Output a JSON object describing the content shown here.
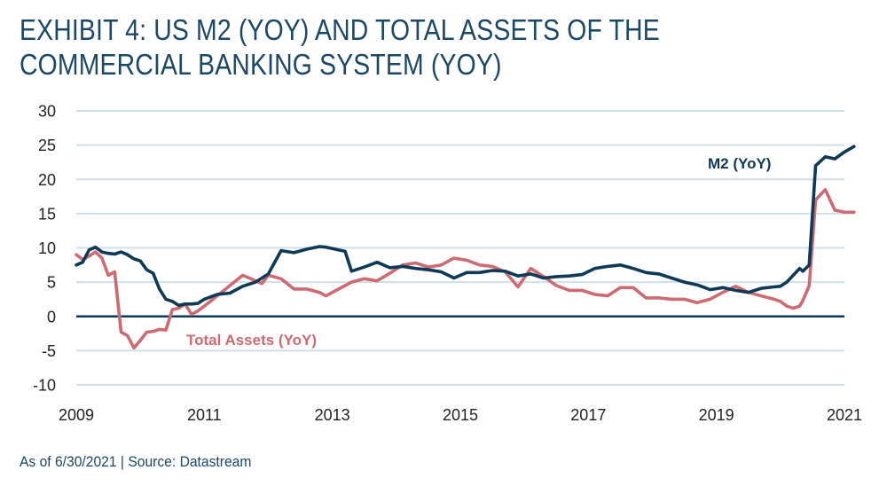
{
  "title_lines": [
    "EXHIBIT 4: US M2 (YOY) AND TOTAL ASSETS OF THE",
    "COMMERCIAL BANKING SYSTEM (YOY)"
  ],
  "footer": "As of 6/30/2021 | Source: Datastream",
  "colors": {
    "title": "#1b4867",
    "m2": "#0f3a57",
    "total_assets": "#cc6b72",
    "grid": "#cfe0ea",
    "zero_line": "#0f3a57"
  },
  "chart_data": {
    "type": "line",
    "title": "EXHIBIT 4: US M2 (YOY) AND TOTAL ASSETS OF THE COMMERCIAL BANKING SYSTEM (YOY)",
    "xlabel": "",
    "ylabel": "",
    "xlim": [
      2009,
      2021.15
    ],
    "ylim": [
      -10,
      30
    ],
    "yticks": [
      30,
      25,
      20,
      15,
      10,
      5,
      0,
      -5,
      -10
    ],
    "ytick_labels": [
      "30",
      "25",
      "20",
      "15",
      "10",
      "5",
      "0",
      "-5",
      "-10"
    ],
    "xticks": [
      2009,
      2011,
      2013,
      2015,
      2017,
      2019,
      2021
    ],
    "xtick_labels": [
      "2009",
      "2011",
      "2013",
      "2015",
      "2017",
      "2019",
      "2021"
    ],
    "grid": true,
    "series": [
      {
        "name": "M2 (YoY)",
        "label": "M2 (YoY)",
        "x": [
          2009.0,
          2009.1,
          2009.2,
          2009.3,
          2009.4,
          2009.5,
          2009.6,
          2009.7,
          2009.8,
          2009.9,
          2010.0,
          2010.1,
          2010.2,
          2010.3,
          2010.4,
          2010.5,
          2010.6,
          2010.7,
          2010.8,
          2010.9,
          2011.0,
          2011.2,
          2011.4,
          2011.6,
          2011.8,
          2011.9,
          2012.0,
          2012.2,
          2012.4,
          2012.6,
          2012.8,
          2012.9,
          2013.0,
          2013.2,
          2013.3,
          2013.5,
          2013.7,
          2013.9,
          2014.1,
          2014.3,
          2014.5,
          2014.7,
          2014.9,
          2015.1,
          2015.3,
          2015.5,
          2015.7,
          2015.9,
          2016.1,
          2016.3,
          2016.5,
          2016.7,
          2016.9,
          2017.1,
          2017.3,
          2017.5,
          2017.7,
          2017.9,
          2018.1,
          2018.3,
          2018.5,
          2018.7,
          2018.9,
          2019.1,
          2019.3,
          2019.5,
          2019.7,
          2019.9,
          2020.0,
          2020.1,
          2020.2,
          2020.3,
          2020.35,
          2020.45,
          2020.55,
          2020.7,
          2020.85,
          2021.0,
          2021.15
        ],
        "values": [
          7.5,
          7.9,
          9.7,
          10.1,
          9.4,
          9.2,
          9.1,
          9.4,
          9.0,
          8.4,
          8.1,
          6.8,
          6.3,
          4.0,
          2.5,
          2.2,
          1.6,
          1.8,
          1.8,
          1.9,
          2.5,
          3.2,
          3.4,
          4.4,
          5.0,
          5.6,
          6.2,
          9.6,
          9.3,
          9.8,
          10.2,
          10.1,
          9.9,
          9.5,
          6.6,
          7.2,
          7.9,
          7.1,
          7.3,
          7.0,
          6.8,
          6.5,
          5.6,
          6.4,
          6.4,
          6.7,
          6.6,
          5.9,
          6.2,
          5.6,
          5.8,
          5.9,
          6.1,
          7.0,
          7.3,
          7.5,
          7.0,
          6.4,
          6.2,
          5.6,
          5.0,
          4.6,
          3.9,
          4.2,
          3.8,
          3.5,
          4.1,
          4.3,
          4.4,
          5.0,
          6.0,
          7.0,
          6.6,
          7.5,
          22.0,
          23.3,
          23.0,
          24.0,
          24.8
        ]
      },
      {
        "name": "Total Assets (YoY)",
        "label": "Total Assets (YoY)",
        "x": [
          2009.0,
          2009.1,
          2009.2,
          2009.3,
          2009.4,
          2009.5,
          2009.6,
          2009.7,
          2009.8,
          2009.9,
          2010.0,
          2010.1,
          2010.2,
          2010.3,
          2010.4,
          2010.5,
          2010.6,
          2010.7,
          2010.8,
          2010.9,
          2011.0,
          2011.2,
          2011.4,
          2011.6,
          2011.8,
          2011.9,
          2012.0,
          2012.2,
          2012.4,
          2012.6,
          2012.8,
          2012.9,
          2013.0,
          2013.2,
          2013.3,
          2013.5,
          2013.7,
          2013.9,
          2014.1,
          2014.3,
          2014.5,
          2014.7,
          2014.9,
          2015.1,
          2015.3,
          2015.5,
          2015.7,
          2015.9,
          2016.1,
          2016.3,
          2016.5,
          2016.7,
          2016.9,
          2017.1,
          2017.3,
          2017.5,
          2017.7,
          2017.9,
          2018.1,
          2018.3,
          2018.5,
          2018.7,
          2018.9,
          2019.1,
          2019.3,
          2019.5,
          2019.7,
          2019.9,
          2020.0,
          2020.1,
          2020.2,
          2020.3,
          2020.35,
          2020.45,
          2020.55,
          2020.7,
          2020.85,
          2021.0,
          2021.15
        ],
        "values": [
          9.0,
          8.3,
          8.8,
          9.4,
          8.5,
          6.0,
          6.5,
          -2.3,
          -2.8,
          -4.6,
          -3.5,
          -2.3,
          -2.2,
          -1.9,
          -2.0,
          1.0,
          1.2,
          1.8,
          0.3,
          0.8,
          1.5,
          3.0,
          4.5,
          6.0,
          5.2,
          4.8,
          6.0,
          5.5,
          4.0,
          4.0,
          3.5,
          3.0,
          3.5,
          4.5,
          5.0,
          5.5,
          5.2,
          6.3,
          7.5,
          7.8,
          7.2,
          7.5,
          8.5,
          8.2,
          7.5,
          7.3,
          6.5,
          4.3,
          7.0,
          5.8,
          4.5,
          3.8,
          3.8,
          3.2,
          3.0,
          4.2,
          4.2,
          2.7,
          2.7,
          2.5,
          2.5,
          2.0,
          2.5,
          3.5,
          4.4,
          3.5,
          3.0,
          2.5,
          2.2,
          1.5,
          1.2,
          1.5,
          2.3,
          4.5,
          17.0,
          18.5,
          15.5,
          15.2,
          15.2
        ]
      }
    ]
  }
}
